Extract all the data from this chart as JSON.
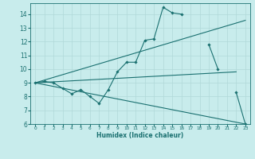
{
  "xlabel": "Humidex (Indice chaleur)",
  "background_color": "#c8ecec",
  "grid_color": "#b0d8d8",
  "line_color": "#1a7070",
  "xlim": [
    -0.5,
    23.5
  ],
  "ylim": [
    6,
    14.8
  ],
  "yticks": [
    6,
    7,
    8,
    9,
    10,
    11,
    12,
    13,
    14
  ],
  "xticks": [
    0,
    1,
    2,
    3,
    4,
    5,
    6,
    7,
    8,
    9,
    10,
    11,
    12,
    13,
    14,
    15,
    16,
    17,
    18,
    19,
    20,
    21,
    22,
    23
  ],
  "line1_segments": [
    {
      "x": [
        0,
        1,
        2,
        3,
        4,
        5,
        6,
        7,
        8,
        9,
        10,
        11,
        12,
        13,
        14,
        15,
        16
      ],
      "y": [
        9.0,
        9.1,
        9.0,
        8.6,
        8.2,
        8.5,
        8.0,
        7.5,
        8.5,
        9.8,
        10.5,
        10.5,
        12.1,
        12.2,
        14.5,
        14.1,
        14.0
      ]
    },
    {
      "x": [
        19,
        20
      ],
      "y": [
        11.8,
        10.0
      ]
    },
    {
      "x": [
        22,
        23
      ],
      "y": [
        8.3,
        6.0
      ]
    }
  ],
  "line2": {
    "x": [
      0,
      23
    ],
    "y": [
      9.0,
      13.55
    ]
  },
  "line3": {
    "x": [
      0,
      23
    ],
    "y": [
      9.0,
      6.0
    ]
  },
  "line4": {
    "x": [
      0,
      22
    ],
    "y": [
      9.0,
      9.8
    ]
  }
}
